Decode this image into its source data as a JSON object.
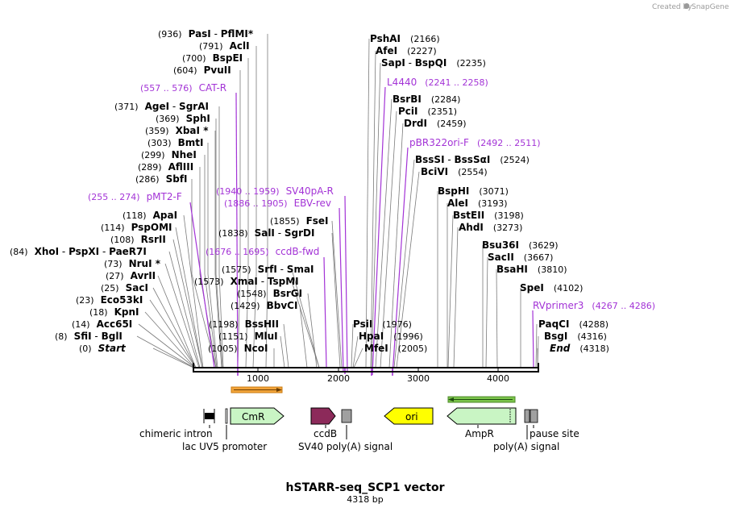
{
  "credit": {
    "created_by": "Created by",
    "brand": "SnapGene"
  },
  "title": "hSTARR-seq_SCP1 vector",
  "length_label": "4318 bp",
  "ruler": [
    "1000",
    "2000",
    "3000",
    "4000"
  ],
  "enzymes_left": [
    {
      "pos": "(936)",
      "name": "PasI",
      "name2": "PflMI",
      "star": "*"
    },
    {
      "pos": "(791)",
      "name": "AclI"
    },
    {
      "pos": "(700)",
      "name": "BspEI"
    },
    {
      "pos": "(604)",
      "name": "PvuII"
    },
    {
      "pos": "(371)",
      "name": "AgeI",
      "name2": "SgrAI"
    },
    {
      "pos": "(369)",
      "name": "SphI"
    },
    {
      "pos": "(359)",
      "name": "XbaI",
      "star": "*"
    },
    {
      "pos": "(303)",
      "name": "BmtI"
    },
    {
      "pos": "(299)",
      "name": "NheI"
    },
    {
      "pos": "(289)",
      "name": "AflIII"
    },
    {
      "pos": "(286)",
      "name": "SbfI"
    },
    {
      "pos": "(118)",
      "name": "ApaI"
    },
    {
      "pos": "(114)",
      "name": "PspOMI"
    },
    {
      "pos": "(108)",
      "name": "RsrII"
    },
    {
      "pos": "(84)",
      "name": "XhoI",
      "name2": "PspXI",
      "name3": "PaeR7I"
    },
    {
      "pos": "(73)",
      "name": "NruI",
      "star": "*"
    },
    {
      "pos": "(27)",
      "name": "AvrII"
    },
    {
      "pos": "(25)",
      "name": "SacI"
    },
    {
      "pos": "(23)",
      "name": "Eco53kI"
    },
    {
      "pos": "(18)",
      "name": "KpnI"
    },
    {
      "pos": "(14)",
      "name": "Acc65I"
    },
    {
      "pos": "(8)",
      "name": "SfiI",
      "name2": "BglI"
    },
    {
      "pos": "(0)",
      "name": "Start"
    }
  ],
  "enzymes_mid": [
    {
      "pos": "(1855)",
      "name": "FseI"
    },
    {
      "pos": "(1838)",
      "name": "SalI",
      "name2": "SgrDI"
    },
    {
      "pos": "(1575)",
      "name": "SrfI",
      "name2": "SmaI"
    },
    {
      "pos": "(1573)",
      "name": "XmaI",
      "name2": "TspMI"
    },
    {
      "pos": "(1548)",
      "name": "BsrGI"
    },
    {
      "pos": "(1429)",
      "name": "BbvCI"
    },
    {
      "pos": "(1198)",
      "name": "BssHII"
    },
    {
      "pos": "(1151)",
      "name": "MluI"
    },
    {
      "pos": "(1005)",
      "name": "NcoI"
    }
  ],
  "enzymes_right": [
    {
      "pos": "(2166)",
      "name": "PshAI"
    },
    {
      "pos": "(2227)",
      "name": "AfeI"
    },
    {
      "pos": "(2235)",
      "name": "SapI",
      "name2": "BspQI"
    },
    {
      "pos": "(2284)",
      "name": "BsrBI"
    },
    {
      "pos": "(2351)",
      "name": "PciI"
    },
    {
      "pos": "(2459)",
      "name": "DrdI"
    },
    {
      "pos": "(2524)",
      "name": "BssSI",
      "name2": "BssSαI"
    },
    {
      "pos": "(2554)",
      "name": "BciVI"
    },
    {
      "pos": "(3071)",
      "name": "BspHI"
    },
    {
      "pos": "(3193)",
      "name": "AleI"
    },
    {
      "pos": "(3198)",
      "name": "BstEII"
    },
    {
      "pos": "(3273)",
      "name": "AhdI"
    },
    {
      "pos": "(3629)",
      "name": "Bsu36I"
    },
    {
      "pos": "(3667)",
      "name": "SacII"
    },
    {
      "pos": "(3810)",
      "name": "BsaHI"
    },
    {
      "pos": "(4102)",
      "name": "SpeI"
    },
    {
      "pos": "(4288)",
      "name": "PaqCI"
    },
    {
      "pos": "(4316)",
      "name": "BsgI"
    },
    {
      "pos": "(4318)",
      "name": "End"
    },
    {
      "pos": "(1976)",
      "name": "PsiI"
    },
    {
      "pos": "(1996)",
      "name": "HpaI"
    },
    {
      "pos": "(2005)",
      "name": "MfeI"
    }
  ],
  "primers": [
    {
      "name": "CAT-R",
      "range": "(557 .. 576)"
    },
    {
      "name": "pMT2-F",
      "range": "(255 .. 274)"
    },
    {
      "name": "SV40pA-R",
      "range": "(1940 .. 1959)"
    },
    {
      "name": "EBV-rev",
      "range": "(1886 .. 1905)"
    },
    {
      "name": "ccdB-fwd",
      "range": "(1676 .. 1695)"
    },
    {
      "name": "L4440",
      "range": "(2241 .. 2258)"
    },
    {
      "name": "pBR322ori-F",
      "range": "(2492 .. 2511)"
    },
    {
      "name": "RVprimer3",
      "range": "(4267 .. 4286)"
    }
  ],
  "features": {
    "chimeric_intron": "chimeric intron",
    "lac_uv5": "lac UV5 promoter",
    "cmr": "CmR",
    "ccdb": "ccdB",
    "sv40": "SV40 poly(A) signal",
    "ori": "ori",
    "ampr": "AmpR",
    "polya": "poly(A) signal",
    "pause": "pause site"
  },
  "colors": {
    "primer": "#a333d6",
    "cmr_fill": "#c9f5c4",
    "ccdb_fill": "#8c2a5a",
    "ori_fill": "#ffff00",
    "ampr_fill": "#c9f5c4",
    "grey_fill": "#a0a0a0",
    "orange_bar": "#f2a43a",
    "green_bar": "#7bc44b"
  }
}
